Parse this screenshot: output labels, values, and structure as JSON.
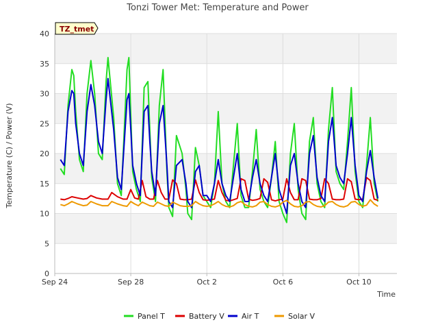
{
  "chart_data": {
    "type": "line",
    "title": "Tonzi Tower Met: Temperature and Power",
    "tag": "TZ_tmet",
    "xlabel": "Time",
    "ylabel": "Temperature (C) / Power (V)",
    "xlim": [
      0,
      18
    ],
    "ylim": [
      0,
      40
    ],
    "x_ticks": [
      {
        "value": 0,
        "label": "Sep 24"
      },
      {
        "value": 4,
        "label": "Sep 28"
      },
      {
        "value": 8,
        "label": "Oct 2"
      },
      {
        "value": 12,
        "label": "Oct 6"
      },
      {
        "value": 16,
        "label": "Oct 10"
      }
    ],
    "y_ticks": [
      0,
      5,
      10,
      15,
      20,
      25,
      30,
      35,
      40
    ],
    "grid": true,
    "legend_position": "bottom",
    "series": [
      {
        "name": "Panel T",
        "color": "#22dd22",
        "x": [
          0.3,
          0.5,
          0.7,
          0.9,
          1.0,
          1.1,
          1.3,
          1.5,
          1.7,
          1.9,
          2.1,
          2.3,
          2.5,
          2.7,
          2.8,
          3.1,
          3.3,
          3.5,
          3.8,
          3.9,
          4.1,
          4.3,
          4.5,
          4.7,
          4.9,
          5.0,
          5.1,
          5.3,
          5.5,
          5.7,
          5.9,
          6.0,
          6.2,
          6.4,
          6.7,
          6.9,
          7.0,
          7.2,
          7.4,
          7.6,
          7.8,
          8.0,
          8.2,
          8.4,
          8.6,
          8.8,
          9.0,
          9.2,
          9.4,
          9.6,
          9.8,
          10.0,
          10.2,
          10.4,
          10.6,
          10.8,
          11.0,
          11.2,
          11.4,
          11.6,
          11.8,
          12.0,
          12.2,
          12.4,
          12.6,
          12.8,
          13.0,
          13.2,
          13.4,
          13.6,
          13.8,
          14.0,
          14.2,
          14.4,
          14.6,
          14.8,
          15.0,
          15.2,
          15.4,
          15.6,
          15.8,
          16.0,
          16.2,
          16.4,
          16.6,
          16.8,
          17.0
        ],
        "values": [
          17.5,
          16.5,
          28,
          34,
          33,
          27,
          19,
          17,
          30,
          35.5,
          30,
          20,
          19,
          32,
          36,
          26,
          15,
          13,
          34,
          36,
          17,
          14,
          12,
          31,
          32,
          24,
          16,
          12,
          28,
          34,
          17,
          11,
          9.5,
          23,
          20,
          14,
          10,
          9,
          21,
          18,
          13,
          12,
          11,
          15,
          27,
          15,
          12,
          11,
          18,
          25,
          13,
          11,
          11,
          17,
          24,
          14,
          12,
          11,
          16,
          22,
          12,
          10,
          8.5,
          20,
          25,
          14,
          10,
          9,
          22,
          26,
          15,
          12,
          11,
          24,
          31,
          17,
          15,
          14,
          22,
          31,
          17,
          12,
          11,
          18,
          26,
          15,
          12
        ]
      },
      {
        "name": "Battery V",
        "color": "#dd0000",
        "x": [
          0.3,
          0.5,
          0.7,
          0.9,
          1.2,
          1.5,
          1.7,
          1.9,
          2.2,
          2.5,
          2.8,
          3.0,
          3.3,
          3.6,
          3.8,
          4.0,
          4.2,
          4.4,
          4.6,
          4.8,
          5.0,
          5.2,
          5.4,
          5.6,
          5.8,
          6.0,
          6.2,
          6.4,
          6.6,
          6.8,
          7.0,
          7.2,
          7.4,
          7.6,
          7.8,
          8.0,
          8.2,
          8.4,
          8.6,
          8.8,
          9.0,
          9.2,
          9.4,
          9.6,
          9.8,
          10.0,
          10.2,
          10.4,
          10.6,
          10.8,
          11.0,
          11.2,
          11.4,
          11.6,
          11.8,
          12.0,
          12.2,
          12.4,
          12.6,
          12.8,
          13.0,
          13.2,
          13.4,
          13.6,
          13.8,
          14.0,
          14.2,
          14.4,
          14.6,
          14.8,
          15.0,
          15.2,
          15.4,
          15.6,
          15.8,
          16.0,
          16.2,
          16.4,
          16.6,
          16.8,
          17.0
        ],
        "values": [
          12.4,
          12.3,
          12.5,
          12.8,
          12.6,
          12.4,
          12.5,
          13.0,
          12.6,
          12.4,
          12.4,
          13.5,
          12.8,
          12.4,
          12.4,
          14.0,
          12.6,
          12.4,
          15.5,
          12.8,
          12.4,
          12.4,
          15.5,
          13.5,
          12.4,
          12.4,
          15.6,
          15.0,
          12.4,
          12.3,
          12.3,
          12.4,
          15.6,
          13.5,
          12.3,
          12.2,
          12.3,
          12.4,
          15.5,
          13.5,
          12.2,
          12.1,
          12.3,
          12.5,
          15.8,
          15.5,
          12.4,
          12.2,
          12.3,
          12.5,
          15.8,
          15.2,
          12.3,
          12.1,
          12.3,
          12.4,
          15.8,
          13.5,
          12.3,
          12.3,
          15.8,
          15.5,
          12.4,
          12.3,
          12.3,
          12.5,
          15.8,
          15.0,
          12.4,
          12.3,
          12.3,
          12.4,
          15.8,
          15.3,
          12.4,
          12.3,
          12.4,
          16.0,
          15.5,
          12.4,
          12.2
        ]
      },
      {
        "name": "Air T",
        "color": "#0000cc",
        "x": [
          0.3,
          0.5,
          0.7,
          0.9,
          1.0,
          1.1,
          1.3,
          1.5,
          1.7,
          1.9,
          2.1,
          2.3,
          2.5,
          2.7,
          2.8,
          3.1,
          3.3,
          3.5,
          3.8,
          3.9,
          4.1,
          4.3,
          4.5,
          4.7,
          4.9,
          5.0,
          5.1,
          5.3,
          5.5,
          5.7,
          5.9,
          6.0,
          6.2,
          6.4,
          6.7,
          6.9,
          7.0,
          7.2,
          7.4,
          7.6,
          7.8,
          8.0,
          8.2,
          8.4,
          8.6,
          8.8,
          9.0,
          9.2,
          9.4,
          9.6,
          9.8,
          10.0,
          10.2,
          10.4,
          10.6,
          10.8,
          11.0,
          11.2,
          11.4,
          11.6,
          11.8,
          12.0,
          12.2,
          12.4,
          12.6,
          12.8,
          13.0,
          13.2,
          13.4,
          13.6,
          13.8,
          14.0,
          14.2,
          14.4,
          14.6,
          14.8,
          15.0,
          15.2,
          15.4,
          15.6,
          15.8,
          16.0,
          16.2,
          16.4,
          16.6,
          16.8,
          17.0
        ],
        "values": [
          19,
          18,
          27,
          30.5,
          30,
          25,
          20,
          18,
          27,
          31.5,
          28,
          22,
          20,
          29,
          32.5,
          24,
          16,
          14,
          29,
          30,
          18,
          15,
          13,
          27,
          28,
          22,
          17,
          13,
          25,
          28,
          18,
          12,
          11,
          18,
          19,
          15,
          12,
          11,
          17,
          18,
          13,
          13,
          12,
          15,
          19,
          15,
          13,
          12,
          16,
          20,
          14,
          12,
          12,
          16,
          19,
          15,
          13,
          12,
          16,
          20,
          14,
          12,
          10,
          18,
          20,
          15,
          12,
          11,
          20,
          23,
          16,
          13,
          12,
          22,
          26,
          18,
          16,
          15,
          20,
          26,
          18,
          13,
          12,
          17,
          20.5,
          16,
          12.5
        ]
      },
      {
        "name": "Solar V",
        "color": "#ee9900",
        "x": [
          0.3,
          0.5,
          0.7,
          0.9,
          1.2,
          1.5,
          1.7,
          1.9,
          2.2,
          2.5,
          2.8,
          3.0,
          3.3,
          3.6,
          3.8,
          4.0,
          4.2,
          4.4,
          4.6,
          4.8,
          5.0,
          5.2,
          5.4,
          5.6,
          5.8,
          6.0,
          6.2,
          6.4,
          6.6,
          6.8,
          7.0,
          7.2,
          7.4,
          7.6,
          7.8,
          8.0,
          8.2,
          8.4,
          8.6,
          8.8,
          9.0,
          9.2,
          9.4,
          9.6,
          9.8,
          10.0,
          10.2,
          10.4,
          10.6,
          10.8,
          11.0,
          11.2,
          11.4,
          11.6,
          11.8,
          12.0,
          12.2,
          12.4,
          12.6,
          12.8,
          13.0,
          13.2,
          13.4,
          13.6,
          13.8,
          14.0,
          14.2,
          14.4,
          14.6,
          14.8,
          15.0,
          15.2,
          15.4,
          15.6,
          15.8,
          16.0,
          16.2,
          16.4,
          16.6,
          16.8,
          17.0
        ],
        "values": [
          11.5,
          11.3,
          11.6,
          12.0,
          11.6,
          11.3,
          11.4,
          12.0,
          11.6,
          11.3,
          11.3,
          12.0,
          11.6,
          11.3,
          11.2,
          12.0,
          11.6,
          11.3,
          11.9,
          11.6,
          11.3,
          11.2,
          11.9,
          11.6,
          11.3,
          11.2,
          11.9,
          11.6,
          11.3,
          11.2,
          11.2,
          11.3,
          12.0,
          11.6,
          11.3,
          11.2,
          11.3,
          11.6,
          12.0,
          11.5,
          11.2,
          11.1,
          11.3,
          11.8,
          12.0,
          11.5,
          11.2,
          11.1,
          11.3,
          11.9,
          12.0,
          11.5,
          11.2,
          11.1,
          11.3,
          11.9,
          12.2,
          11.6,
          11.2,
          11.1,
          11.3,
          11.9,
          12.0,
          11.5,
          11.2,
          11.1,
          11.3,
          11.9,
          12.0,
          11.5,
          11.2,
          11.1,
          11.3,
          11.9,
          12.0,
          11.5,
          11.2,
          11.4,
          12.3,
          11.6,
          11.2
        ]
      }
    ]
  }
}
